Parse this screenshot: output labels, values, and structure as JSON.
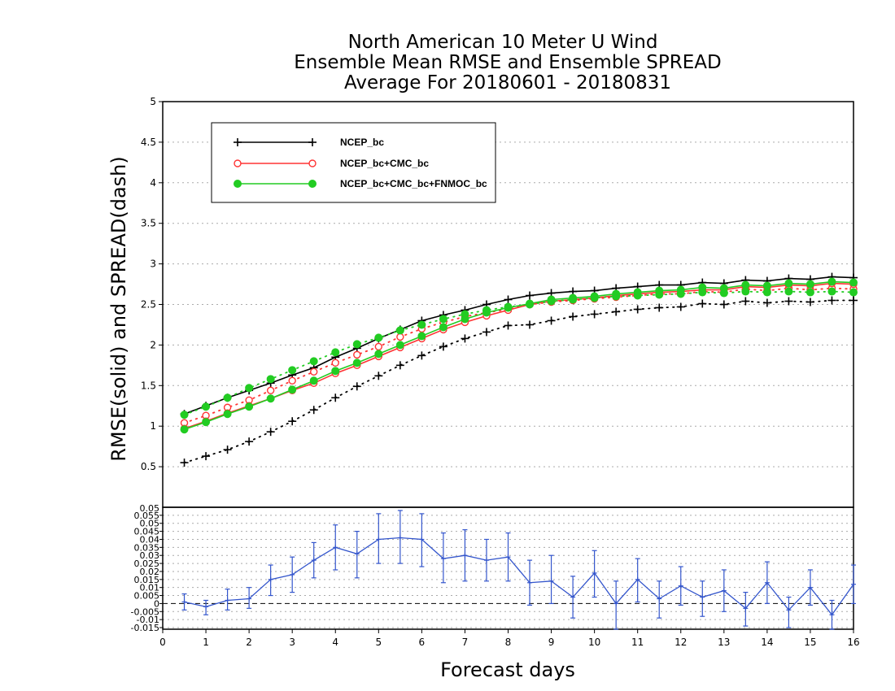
{
  "title": {
    "line1": "North American 10 Meter U Wind",
    "line2": "Ensemble Mean RMSE and Ensemble SPREAD",
    "line3": "Average For 20180601 - 20180831"
  },
  "colors": {
    "black": "#000000",
    "red": "#ff3333",
    "green": "#22cc22",
    "blue": "#3355cc",
    "grid": "#aaaaaa"
  },
  "chart_data": [
    {
      "type": "line",
      "ylabel": "RMSE(solid) and SPREAD(dash)",
      "xlim": [
        0,
        16
      ],
      "ylim": [
        0,
        5
      ],
      "y_ticks": [
        "0.5",
        "1",
        "1.5",
        "2",
        "2.5",
        "3",
        "3.5",
        "4",
        "4.5",
        "5"
      ],
      "grid": true,
      "legend_position": "top-left",
      "x": [
        0.5,
        1,
        1.5,
        2,
        2.5,
        3,
        3.5,
        4,
        4.5,
        5,
        5.5,
        6,
        6.5,
        7,
        7.5,
        8,
        8.5,
        9,
        9.5,
        10,
        10.5,
        11,
        11.5,
        12,
        12.5,
        13,
        13.5,
        14,
        14.5,
        15,
        15.5,
        16
      ],
      "series": [
        {
          "name": "NCEP_bc",
          "color": "#000000",
          "marker": "plus",
          "rmse": [
            1.15,
            1.25,
            1.35,
            1.44,
            1.53,
            1.63,
            1.72,
            1.85,
            1.96,
            2.08,
            2.19,
            2.3,
            2.37,
            2.43,
            2.5,
            2.56,
            2.61,
            2.64,
            2.66,
            2.67,
            2.7,
            2.72,
            2.74,
            2.74,
            2.77,
            2.76,
            2.8,
            2.79,
            2.82,
            2.81,
            2.84,
            2.83
          ],
          "spread": [
            0.55,
            0.63,
            0.71,
            0.81,
            0.93,
            1.06,
            1.2,
            1.35,
            1.49,
            1.62,
            1.75,
            1.87,
            1.98,
            2.08,
            2.16,
            2.24,
            2.25,
            2.3,
            2.35,
            2.38,
            2.41,
            2.44,
            2.46,
            2.47,
            2.51,
            2.5,
            2.54,
            2.52,
            2.54,
            2.53,
            2.55,
            2.55
          ]
        },
        {
          "name": "NCEP_bc+CMC_bc",
          "color": "#ff3333",
          "marker": "open-circle",
          "rmse": [
            0.97,
            1.06,
            1.16,
            1.25,
            1.34,
            1.44,
            1.53,
            1.65,
            1.75,
            1.86,
            1.97,
            2.08,
            2.19,
            2.28,
            2.36,
            2.43,
            2.5,
            2.54,
            2.56,
            2.58,
            2.61,
            2.63,
            2.65,
            2.66,
            2.68,
            2.68,
            2.72,
            2.71,
            2.74,
            2.73,
            2.76,
            2.75
          ],
          "spread": [
            1.04,
            1.13,
            1.23,
            1.32,
            1.44,
            1.56,
            1.67,
            1.78,
            1.88,
            1.98,
            2.1,
            2.2,
            2.28,
            2.35,
            2.4,
            2.44,
            2.5,
            2.53,
            2.55,
            2.57,
            2.59,
            2.61,
            2.63,
            2.63,
            2.66,
            2.65,
            2.69,
            2.67,
            2.7,
            2.68,
            2.7,
            2.69
          ]
        },
        {
          "name": "NCEP_bc+CMC_bc+FNMOC_bc",
          "color": "#22cc22",
          "marker": "filled-circle",
          "rmse": [
            0.96,
            1.05,
            1.15,
            1.24,
            1.34,
            1.45,
            1.56,
            1.68,
            1.78,
            1.89,
            2.0,
            2.11,
            2.22,
            2.32,
            2.4,
            2.46,
            2.51,
            2.56,
            2.58,
            2.6,
            2.63,
            2.65,
            2.67,
            2.68,
            2.71,
            2.7,
            2.74,
            2.73,
            2.76,
            2.75,
            2.78,
            2.77
          ],
          "spread": [
            1.14,
            1.24,
            1.35,
            1.47,
            1.58,
            1.69,
            1.8,
            1.91,
            2.01,
            2.09,
            2.18,
            2.25,
            2.32,
            2.38,
            2.43,
            2.47,
            2.5,
            2.54,
            2.56,
            2.58,
            2.6,
            2.61,
            2.62,
            2.63,
            2.65,
            2.64,
            2.66,
            2.65,
            2.66,
            2.65,
            2.66,
            2.65
          ]
        }
      ]
    },
    {
      "type": "line",
      "xlabel": "Forecast days",
      "xlim": [
        0,
        16
      ],
      "ylim": [
        -0.016,
        0.06
      ],
      "x_ticks": [
        "0",
        "1",
        "2",
        "3",
        "4",
        "5",
        "6",
        "7",
        "8",
        "9",
        "10",
        "11",
        "12",
        "13",
        "14",
        "15",
        "16"
      ],
      "y_ticks": [
        "-0.015",
        "-0.01",
        "-0.005",
        "0",
        "0.005",
        "0.01",
        "0.015",
        "0.02",
        "0.025",
        "0.03",
        "0.035",
        "0.04",
        "0.045",
        "0.05",
        "0.055"
      ],
      "y_top_label": "0.05",
      "reference_line": 0,
      "grid": true,
      "color": "#3355cc",
      "x": [
        0.5,
        1,
        1.5,
        2,
        2.5,
        3,
        3.5,
        4,
        4.5,
        5,
        5.5,
        6,
        6.5,
        7,
        7.5,
        8,
        8.5,
        9,
        9.5,
        10,
        10.5,
        11,
        11.5,
        12,
        12.5,
        13,
        13.5,
        14,
        14.5,
        15,
        15.5,
        16
      ],
      "values": [
        0.001,
        -0.002,
        0.002,
        0.003,
        0.015,
        0.018,
        0.027,
        0.035,
        0.031,
        0.04,
        0.041,
        0.04,
        0.028,
        0.03,
        0.027,
        0.029,
        0.013,
        0.014,
        0.004,
        0.019,
        0.0,
        0.015,
        0.003,
        0.011,
        0.004,
        0.008,
        -0.003,
        0.013,
        -0.004,
        0.01,
        -0.007,
        0.012
      ],
      "error_low": [
        -0.004,
        -0.007,
        -0.004,
        -0.003,
        0.005,
        0.007,
        0.016,
        0.021,
        0.016,
        0.025,
        0.025,
        0.023,
        0.013,
        0.014,
        0.014,
        0.014,
        -0.001,
        0.0,
        -0.009,
        0.004,
        -0.016,
        0.001,
        -0.009,
        -0.001,
        -0.008,
        -0.005,
        -0.014,
        0.0,
        -0.015,
        -0.001,
        -0.017,
        0.0
      ],
      "error_high": [
        0.006,
        0.002,
        0.009,
        0.01,
        0.024,
        0.029,
        0.038,
        0.049,
        0.045,
        0.056,
        0.058,
        0.056,
        0.044,
        0.046,
        0.04,
        0.044,
        0.027,
        0.03,
        0.017,
        0.033,
        0.014,
        0.028,
        0.014,
        0.023,
        0.014,
        0.021,
        0.007,
        0.026,
        0.004,
        0.021,
        0.002,
        0.024
      ]
    }
  ]
}
